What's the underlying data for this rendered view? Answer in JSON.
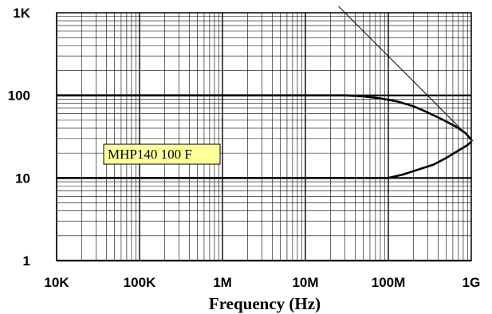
{
  "chart_data": {
    "type": "line",
    "title": "",
    "xlabel": "Frequency (Hz)",
    "ylabel": "",
    "x_scale": "log",
    "y_scale": "log",
    "xlim": [
      10000,
      1000000000
    ],
    "ylim": [
      1,
      1000
    ],
    "x_ticks": [
      10000,
      100000,
      1000000,
      10000000,
      100000000,
      1000000000
    ],
    "x_tick_labels": [
      "10K",
      "100K",
      "1M",
      "10M",
      "100M",
      "1G"
    ],
    "y_ticks": [
      1,
      10,
      100,
      1000
    ],
    "y_tick_labels": [
      "1",
      "10",
      "100",
      "1K"
    ],
    "grid": true,
    "annotation": "MHP140 100 F",
    "annotation_color": "#ffff99",
    "series": [
      {
        "x": [
          3000,
          30000000,
          50000000,
          80000000,
          130000000,
          200000000,
          300000000,
          450000000,
          650000000,
          850000000,
          1000000000
        ],
        "y": [
          100,
          100,
          97,
          92,
          84,
          74,
          62,
          51,
          42,
          35,
          29
        ]
      },
      {
        "x": [
          3000,
          100000000,
          150000000,
          250000000,
          350000000,
          500000000,
          700000000,
          900000000,
          1000000000
        ],
        "y": [
          10,
          10,
          11,
          13,
          14.5,
          17.5,
          21.5,
          25,
          27.5
        ]
      },
      {
        "x": [
          25000000,
          1050000000
        ],
        "y": [
          1200,
          28
        ]
      }
    ]
  }
}
